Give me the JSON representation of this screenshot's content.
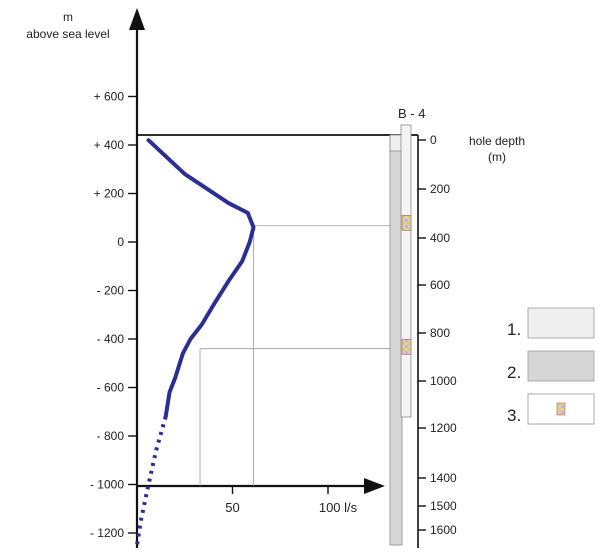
{
  "left_axis": {
    "unit": "m",
    "label": "above sea level",
    "ticks": [
      {
        "value": 600,
        "label": "+ 600"
      },
      {
        "value": 400,
        "label": "+ 400"
      },
      {
        "value": 200,
        "label": "+ 200"
      },
      {
        "value": 0,
        "label": "0"
      },
      {
        "value": -200,
        "label": "- 200"
      },
      {
        "value": -400,
        "label": "- 400"
      },
      {
        "value": -600,
        "label": "- 600"
      },
      {
        "value": -800,
        "label": "- 800"
      },
      {
        "value": -1000,
        "label": "- 1000"
      },
      {
        "value": -1200,
        "label": "- 1200"
      }
    ]
  },
  "bottom_axis": {
    "ticks": [
      {
        "value": 50,
        "label": "50"
      },
      {
        "value": 100,
        "label": "100 l/s"
      }
    ]
  },
  "borehole": {
    "name": "B - 4",
    "depth_label": "hole depth",
    "depth_unit": "(m)",
    "depth_ticks": [
      {
        "value": 0,
        "label": "0"
      },
      {
        "value": 200,
        "label": "200"
      },
      {
        "value": 400,
        "label": "400"
      },
      {
        "value": 600,
        "label": "600"
      },
      {
        "value": 800,
        "label": "800"
      },
      {
        "value": 1000,
        "label": "1000"
      },
      {
        "value": 1200,
        "label": "1200"
      },
      {
        "value": 1400,
        "label": "1400"
      },
      {
        "value": 1500,
        "label": "1500"
      },
      {
        "value": 1600,
        "label": "1600"
      }
    ]
  },
  "legend": [
    {
      "number": "1.",
      "swatch": "#efefef"
    },
    {
      "number": "2.",
      "swatch": "#d6d6d6"
    },
    {
      "number": "3.",
      "swatch": "#ffffff"
    }
  ],
  "curve": {
    "color": "#2a2f94",
    "solid_points": [
      [
        6,
        420
      ],
      [
        25,
        280
      ],
      [
        48,
        160
      ],
      [
        58,
        120
      ],
      [
        61,
        60
      ],
      [
        59,
        0
      ],
      [
        55,
        -80
      ],
      [
        48,
        -160
      ],
      [
        40,
        -260
      ],
      [
        34,
        -340
      ],
      [
        28,
        -400
      ],
      [
        24,
        -460
      ],
      [
        20,
        -560
      ],
      [
        17,
        -620
      ],
      [
        15,
        -720
      ]
    ],
    "dotted_points": [
      [
        15,
        -720
      ],
      [
        10,
        -860
      ],
      [
        6,
        -1000
      ],
      [
        2,
        -1150
      ],
      [
        0,
        -1250
      ]
    ]
  },
  "reference_lines": [
    {
      "flow": 61,
      "elevation": 67
    },
    {
      "flow": 33,
      "elevation": -440
    }
  ],
  "inflow_markers": [
    {
      "depth": 340
    },
    {
      "depth": 860
    }
  ]
}
